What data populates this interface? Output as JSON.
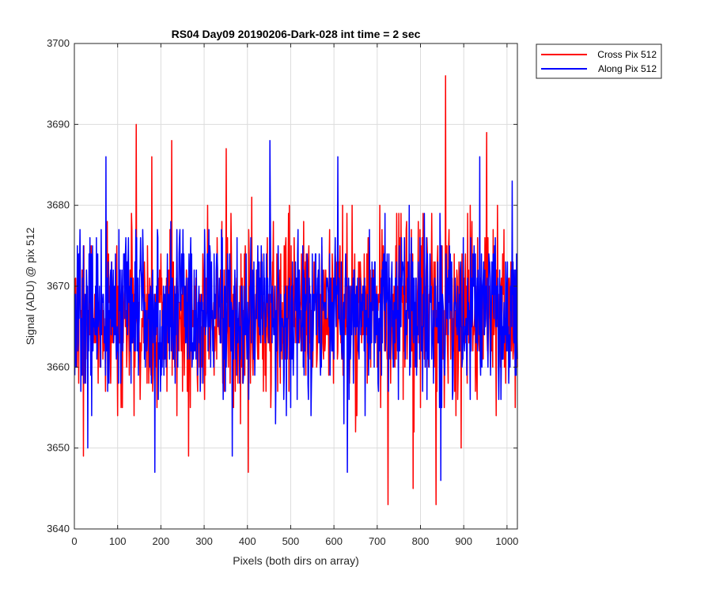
{
  "chart_data": {
    "type": "line",
    "title": "RS04 Day09 20190206-Dark-028 int time = 2 sec",
    "xlabel": "Pixels (both dirs on array)",
    "ylabel": "Signal (ADU) @ pix 512",
    "xlim": [
      0,
      1024
    ],
    "ylim": [
      3640,
      3700
    ],
    "xticks": [
      0,
      100,
      200,
      300,
      400,
      500,
      600,
      700,
      800,
      900,
      1000
    ],
    "yticks": [
      3640,
      3650,
      3660,
      3670,
      3680,
      3690,
      3700
    ],
    "grid": true,
    "legend_position": "top-right-outside",
    "series": [
      {
        "name": "Cross Pix 512",
        "color": "#ff0000",
        "mean": 3666.5,
        "std": 5.2,
        "seed": 7,
        "extremes": [
          {
            "x": 142,
            "y": 3690
          },
          {
            "x": 224,
            "y": 3688
          },
          {
            "x": 178,
            "y": 3686
          },
          {
            "x": 350,
            "y": 3687
          },
          {
            "x": 263,
            "y": 3649
          },
          {
            "x": 401,
            "y": 3647
          },
          {
            "x": 724,
            "y": 3643
          },
          {
            "x": 835,
            "y": 3643
          },
          {
            "x": 857,
            "y": 3696
          },
          {
            "x": 782,
            "y": 3645
          },
          {
            "x": 952,
            "y": 3689
          },
          {
            "x": 20,
            "y": 3649
          }
        ]
      },
      {
        "name": "Along Pix 512",
        "color": "#0000ff",
        "mean": 3666.8,
        "std": 5.0,
        "seed": 13,
        "extremes": [
          {
            "x": 72,
            "y": 3686
          },
          {
            "x": 185,
            "y": 3647
          },
          {
            "x": 451,
            "y": 3688
          },
          {
            "x": 364,
            "y": 3649
          },
          {
            "x": 846,
            "y": 3646
          },
          {
            "x": 630,
            "y": 3647
          },
          {
            "x": 608,
            "y": 3686
          },
          {
            "x": 936,
            "y": 3686
          },
          {
            "x": 30,
            "y": 3650
          }
        ]
      }
    ]
  }
}
